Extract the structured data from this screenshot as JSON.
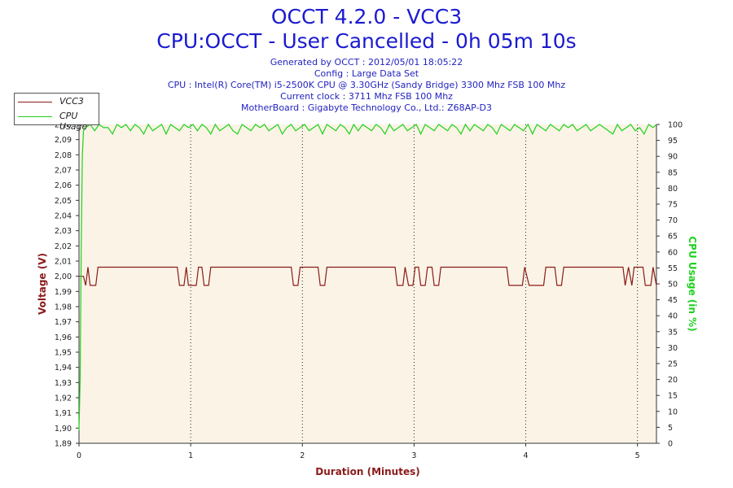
{
  "header": {
    "title": "OCCT 4.2.0 - VCC3",
    "subtitle": "CPU:OCCT - User Cancelled - 0h 05m 10s",
    "info_lines": [
      "Generated by OCCT : 2012/05/01 18:05:22",
      "Config : Large Data Set",
      "CPU : Intel(R) Core(TM) i5-2500K CPU @ 3.30GHz (Sandy Bridge) 3300 Mhz FSB 100 Mhz",
      "Current clock : 3711 Mhz FSB 100 Mhz",
      "MotherBoard : Gigabyte Technology Co., Ltd.: Z68AP-D3"
    ]
  },
  "legend": {
    "items": [
      {
        "label": "VCC3",
        "color": "#8b1a1a"
      },
      {
        "label": "CPU Usage",
        "color": "#1ed21e"
      }
    ]
  },
  "chart_data": {
    "type": "line",
    "xlabel": "Duration (Minutes)",
    "ylabel_left": "Voltage (V)",
    "ylabel_right": "CPU Usage (in %)",
    "xlim": [
      0,
      5.17
    ],
    "x_ticks": [
      "0",
      "1",
      "2",
      "3",
      "4",
      "5"
    ],
    "ylim_left": [
      1.89,
      2.1
    ],
    "y_ticks_left": [
      "1,89",
      "1,90",
      "1,91",
      "1,92",
      "1,93",
      "1,94",
      "1,95",
      "1,96",
      "1,97",
      "1,98",
      "1,99",
      "2,00",
      "2,01",
      "2,02",
      "2,03",
      "2,04",
      "2,05",
      "2,06",
      "2,07",
      "2,08",
      "2,09",
      "2,10"
    ],
    "ylim_right": [
      0,
      100
    ],
    "y_ticks_right": [
      "0",
      "5",
      "10",
      "15",
      "20",
      "25",
      "30",
      "35",
      "40",
      "45",
      "50",
      "55",
      "60",
      "65",
      "70",
      "75",
      "80",
      "85",
      "90",
      "95",
      "100"
    ],
    "grid": true,
    "colors": {
      "plot_bg": "#fbf4e6",
      "axis_left": "#8b1a1a",
      "axis_right": "#1ed21e",
      "title": "#1a1ad0"
    },
    "series": [
      {
        "name": "VCC3",
        "axis": "left",
        "color": "#8b1a1a",
        "values": [
          [
            0.0,
            2.0
          ],
          [
            0.04,
            2.0
          ],
          [
            0.06,
            1.994
          ],
          [
            0.08,
            2.006
          ],
          [
            0.1,
            1.994
          ],
          [
            0.15,
            1.994
          ],
          [
            0.17,
            2.006
          ],
          [
            0.88,
            2.006
          ],
          [
            0.9,
            1.994
          ],
          [
            0.94,
            1.994
          ],
          [
            0.96,
            2.006
          ],
          [
            0.98,
            1.994
          ],
          [
            1.05,
            1.994
          ],
          [
            1.07,
            2.006
          ],
          [
            1.1,
            2.006
          ],
          [
            1.12,
            1.994
          ],
          [
            1.16,
            1.994
          ],
          [
            1.18,
            2.006
          ],
          [
            1.9,
            2.006
          ],
          [
            1.92,
            1.994
          ],
          [
            1.96,
            1.994
          ],
          [
            1.98,
            2.006
          ],
          [
            2.14,
            2.006
          ],
          [
            2.16,
            1.994
          ],
          [
            2.2,
            1.994
          ],
          [
            2.22,
            2.006
          ],
          [
            2.83,
            2.006
          ],
          [
            2.85,
            1.994
          ],
          [
            2.9,
            1.994
          ],
          [
            2.92,
            2.006
          ],
          [
            2.95,
            1.994
          ],
          [
            2.99,
            1.994
          ],
          [
            3.01,
            2.006
          ],
          [
            3.04,
            2.006
          ],
          [
            3.06,
            1.994
          ],
          [
            3.1,
            1.994
          ],
          [
            3.12,
            2.006
          ],
          [
            3.16,
            2.006
          ],
          [
            3.18,
            1.994
          ],
          [
            3.22,
            1.994
          ],
          [
            3.24,
            2.006
          ],
          [
            3.83,
            2.006
          ],
          [
            3.85,
            1.994
          ],
          [
            3.97,
            1.994
          ],
          [
            3.99,
            2.006
          ],
          [
            4.03,
            1.994
          ],
          [
            4.16,
            1.994
          ],
          [
            4.18,
            2.006
          ],
          [
            4.26,
            2.006
          ],
          [
            4.28,
            1.994
          ],
          [
            4.32,
            1.994
          ],
          [
            4.34,
            2.006
          ],
          [
            4.87,
            2.006
          ],
          [
            4.89,
            1.994
          ],
          [
            4.92,
            2.006
          ],
          [
            4.95,
            1.994
          ],
          [
            4.97,
            2.006
          ],
          [
            5.05,
            2.006
          ],
          [
            5.07,
            1.994
          ],
          [
            5.12,
            1.994
          ],
          [
            5.14,
            2.006
          ],
          [
            5.17,
            1.994
          ]
        ]
      },
      {
        "name": "CPU Usage",
        "axis": "right",
        "color": "#1ed21e",
        "values": [
          [
            0.0,
            4
          ],
          [
            0.01,
            20
          ],
          [
            0.02,
            60
          ],
          [
            0.03,
            90
          ],
          [
            0.04,
            98
          ],
          [
            0.06,
            99
          ],
          [
            0.1,
            100
          ],
          [
            0.14,
            98
          ],
          [
            0.18,
            100
          ],
          [
            0.22,
            99
          ],
          [
            0.26,
            99
          ],
          [
            0.3,
            97
          ],
          [
            0.34,
            100
          ],
          [
            0.38,
            99
          ],
          [
            0.42,
            100
          ],
          [
            0.46,
            98
          ],
          [
            0.5,
            100
          ],
          [
            0.54,
            99
          ],
          [
            0.58,
            97
          ],
          [
            0.62,
            100
          ],
          [
            0.66,
            98
          ],
          [
            0.7,
            99
          ],
          [
            0.74,
            100
          ],
          [
            0.78,
            97
          ],
          [
            0.82,
            100
          ],
          [
            0.86,
            99
          ],
          [
            0.9,
            98
          ],
          [
            0.94,
            100
          ],
          [
            0.98,
            99
          ],
          [
            1.02,
            100
          ],
          [
            1.06,
            98
          ],
          [
            1.1,
            100
          ],
          [
            1.14,
            99
          ],
          [
            1.18,
            97
          ],
          [
            1.22,
            100
          ],
          [
            1.26,
            98
          ],
          [
            1.3,
            99
          ],
          [
            1.34,
            100
          ],
          [
            1.38,
            98
          ],
          [
            1.42,
            97
          ],
          [
            1.46,
            100
          ],
          [
            1.5,
            99
          ],
          [
            1.54,
            98
          ],
          [
            1.58,
            100
          ],
          [
            1.62,
            99
          ],
          [
            1.66,
            100
          ],
          [
            1.7,
            98
          ],
          [
            1.74,
            99
          ],
          [
            1.78,
            100
          ],
          [
            1.82,
            97
          ],
          [
            1.86,
            99
          ],
          [
            1.9,
            100
          ],
          [
            1.94,
            98
          ],
          [
            1.98,
            99
          ],
          [
            2.02,
            100
          ],
          [
            2.06,
            98
          ],
          [
            2.1,
            99
          ],
          [
            2.14,
            100
          ],
          [
            2.18,
            97
          ],
          [
            2.22,
            100
          ],
          [
            2.26,
            99
          ],
          [
            2.3,
            98
          ],
          [
            2.34,
            100
          ],
          [
            2.38,
            99
          ],
          [
            2.42,
            97
          ],
          [
            2.46,
            100
          ],
          [
            2.5,
            98
          ],
          [
            2.54,
            100
          ],
          [
            2.58,
            99
          ],
          [
            2.62,
            98
          ],
          [
            2.66,
            100
          ],
          [
            2.7,
            99
          ],
          [
            2.74,
            97
          ],
          [
            2.78,
            100
          ],
          [
            2.82,
            98
          ],
          [
            2.86,
            99
          ],
          [
            2.9,
            100
          ],
          [
            2.94,
            98
          ],
          [
            2.98,
            99
          ],
          [
            3.02,
            100
          ],
          [
            3.06,
            97
          ],
          [
            3.1,
            100
          ],
          [
            3.14,
            99
          ],
          [
            3.18,
            98
          ],
          [
            3.22,
            100
          ],
          [
            3.26,
            99
          ],
          [
            3.3,
            98
          ],
          [
            3.34,
            100
          ],
          [
            3.38,
            99
          ],
          [
            3.42,
            97
          ],
          [
            3.46,
            100
          ],
          [
            3.5,
            98
          ],
          [
            3.54,
            100
          ],
          [
            3.58,
            99
          ],
          [
            3.62,
            98
          ],
          [
            3.66,
            100
          ],
          [
            3.7,
            99
          ],
          [
            3.74,
            97
          ],
          [
            3.78,
            100
          ],
          [
            3.82,
            99
          ],
          [
            3.86,
            98
          ],
          [
            3.9,
            100
          ],
          [
            3.94,
            99
          ],
          [
            3.98,
            98
          ],
          [
            4.02,
            100
          ],
          [
            4.06,
            97
          ],
          [
            4.1,
            100
          ],
          [
            4.14,
            99
          ],
          [
            4.18,
            98
          ],
          [
            4.22,
            100
          ],
          [
            4.26,
            99
          ],
          [
            4.3,
            98
          ],
          [
            4.34,
            100
          ],
          [
            4.38,
            99
          ],
          [
            4.42,
            100
          ],
          [
            4.46,
            98
          ],
          [
            4.5,
            99
          ],
          [
            4.54,
            100
          ],
          [
            4.58,
            98
          ],
          [
            4.62,
            99
          ],
          [
            4.66,
            100
          ],
          [
            4.7,
            99
          ],
          [
            4.74,
            98
          ],
          [
            4.78,
            97
          ],
          [
            4.82,
            100
          ],
          [
            4.86,
            98
          ],
          [
            4.9,
            99
          ],
          [
            4.94,
            100
          ],
          [
            4.98,
            98
          ],
          [
            5.02,
            99
          ],
          [
            5.06,
            97
          ],
          [
            5.1,
            100
          ],
          [
            5.14,
            99
          ],
          [
            5.17,
            100
          ]
        ]
      }
    ]
  }
}
